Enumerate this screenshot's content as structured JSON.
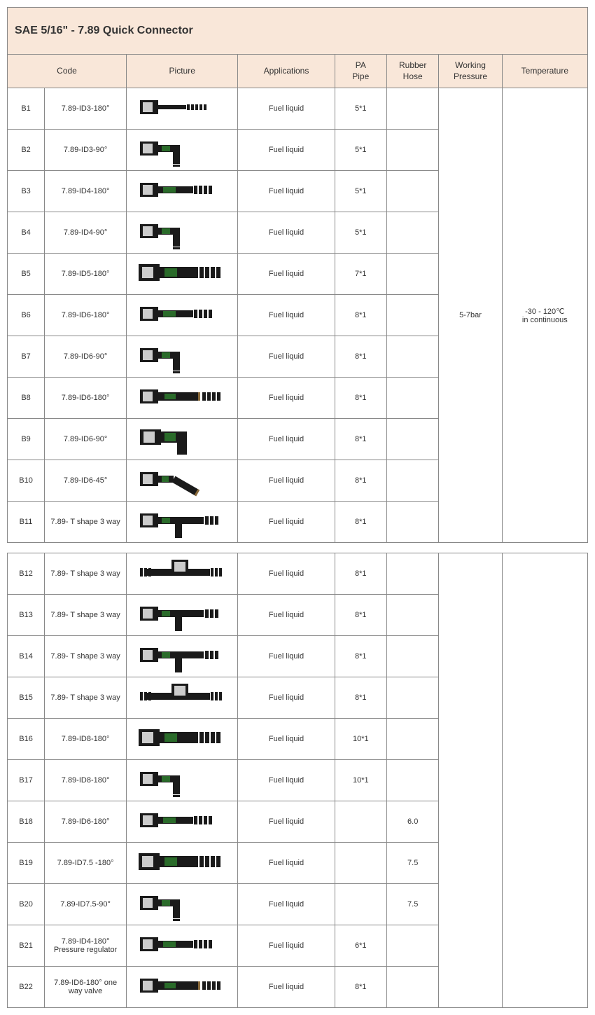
{
  "title": "SAE 5/16\" - 7.89 Quick Connector",
  "headers": {
    "code": "Code",
    "picture": "Picture",
    "applications": "Applications",
    "pa_pipe": "PA Pipe",
    "rubber_hose": "Rubber Hose",
    "working_pressure": "Working Pressure",
    "temperature": "Temperature"
  },
  "merged": {
    "working_pressure": "5-7bar",
    "temperature": "-30 - 120℃ in continuous"
  },
  "col_widths": {
    "id": 50,
    "code": 110,
    "picture": 150,
    "applications": 130,
    "pa_pipe": 70,
    "rubber_hose": 70,
    "working_pressure": 85,
    "temperature": 115
  },
  "colors": {
    "header_bg": "#f9e7d9",
    "border": "#888888",
    "text": "#333333",
    "connector_body": "#1a1a1a",
    "connector_green": "#2a6b2a",
    "connector_port": "#cccccc",
    "connector_accent": "#8a6a3a"
  },
  "rows": [
    {
      "id": "B1",
      "code": "7.89-ID3-180°",
      "shape": "straight-thin",
      "app": "Fuel liquid",
      "pa": "5*1",
      "rh": "",
      "wp": "",
      "temp": ""
    },
    {
      "id": "B2",
      "code": "7.89-ID3-90°",
      "shape": "elbow",
      "app": "Fuel liquid",
      "pa": "5*1",
      "rh": "",
      "wp": "",
      "temp": ""
    },
    {
      "id": "B3",
      "code": "7.89-ID4-180°",
      "shape": "straight",
      "app": "Fuel liquid",
      "pa": "5*1",
      "rh": "",
      "wp": "",
      "temp": ""
    },
    {
      "id": "B4",
      "code": "7.89-ID4-90°",
      "shape": "elbow",
      "app": "Fuel liquid",
      "pa": "5*1",
      "rh": "",
      "wp": "",
      "temp": ""
    },
    {
      "id": "B5",
      "code": "7.89-ID5-180°",
      "shape": "straight-wide",
      "app": "Fuel liquid",
      "pa": "7*1",
      "rh": "",
      "wp": "",
      "temp": ""
    },
    {
      "id": "B6",
      "code": "7.89-ID6-180°",
      "shape": "straight",
      "app": "Fuel liquid",
      "pa": "8*1",
      "rh": "",
      "wp": "",
      "temp": ""
    },
    {
      "id": "B7",
      "code": "7.89-ID6-90°",
      "shape": "elbow",
      "app": "Fuel liquid",
      "pa": "8*1",
      "rh": "",
      "wp": "",
      "temp": ""
    },
    {
      "id": "B8",
      "code": "7.89-ID6-180°",
      "shape": "straight-accent",
      "app": "Fuel liquid",
      "pa": "8*1",
      "rh": "",
      "wp": "",
      "temp": ""
    },
    {
      "id": "B9",
      "code": "7.89-ID6-90°",
      "shape": "elbow-wide",
      "app": "Fuel liquid",
      "pa": "8*1",
      "rh": "",
      "wp": "",
      "temp": ""
    },
    {
      "id": "B10",
      "code": "7.89-ID6-45°",
      "shape": "angle45",
      "app": "Fuel liquid",
      "pa": "8*1",
      "rh": "",
      "wp": "",
      "temp": ""
    },
    {
      "id": "B11",
      "code": "7.89- T shape 3 way",
      "shape": "tee",
      "app": "Fuel liquid",
      "pa": "8*1",
      "rh": "",
      "wp": "",
      "temp": ""
    },
    {
      "gap": true
    },
    {
      "id": "B12",
      "code": "7.89- T shape 3 way",
      "shape": "tee-center",
      "app": "Fuel liquid",
      "pa": "8*1",
      "rh": "",
      "wp": "",
      "temp": ""
    },
    {
      "id": "B13",
      "code": "7.89- T shape 3 way",
      "shape": "tee",
      "app": "Fuel liquid",
      "pa": "8*1",
      "rh": "",
      "wp": "",
      "temp": ""
    },
    {
      "id": "B14",
      "code": "7.89- T shape 3 way",
      "shape": "tee",
      "app": "Fuel liquid",
      "pa": "8*1",
      "rh": "",
      "wp": "",
      "temp": ""
    },
    {
      "id": "B15",
      "code": "7.89- T shape 3 way",
      "shape": "tee-center",
      "app": "Fuel liquid",
      "pa": "8*1",
      "rh": "",
      "wp": "",
      "temp": ""
    },
    {
      "id": "B16",
      "code": "7.89-ID8-180°",
      "shape": "straight-wide",
      "app": "Fuel liquid",
      "pa": "10*1",
      "rh": "",
      "wp": "",
      "temp": ""
    },
    {
      "id": "B17",
      "code": "7.89-ID8-180°",
      "shape": "elbow",
      "app": "Fuel liquid",
      "pa": "10*1",
      "rh": "",
      "wp": "",
      "temp": ""
    },
    {
      "id": "B18",
      "code": "7.89-ID6-180°",
      "shape": "straight",
      "app": "Fuel liquid",
      "pa": "",
      "rh": "6.0",
      "wp": "",
      "temp": ""
    },
    {
      "id": "B19",
      "code": "7.89-ID7.5 -180°",
      "shape": "straight-wide",
      "app": "Fuel liquid",
      "pa": "",
      "rh": "7.5",
      "wp": "",
      "temp": ""
    },
    {
      "id": "B20",
      "code": "7.89-ID7.5-90°",
      "shape": "elbow",
      "app": "Fuel liquid",
      "pa": "",
      "rh": "7.5",
      "wp": "",
      "temp": ""
    },
    {
      "id": "B21",
      "code": "7.89-ID4-180° Pressure regulator",
      "shape": "straight",
      "app": "Fuel liquid",
      "pa": "6*1",
      "rh": "",
      "wp": "",
      "temp": ""
    },
    {
      "id": "B22",
      "code": "7.89-ID6-180° one way valve",
      "shape": "straight-accent",
      "app": "Fuel liquid",
      "pa": "8*1",
      "rh": "",
      "wp": "",
      "temp": ""
    }
  ]
}
